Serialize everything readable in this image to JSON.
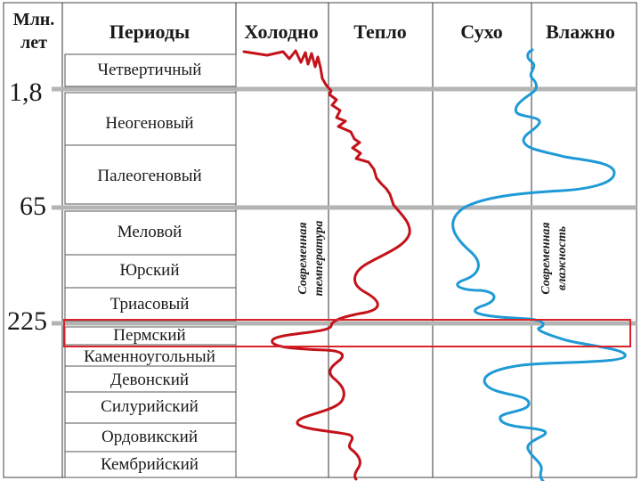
{
  "headers": {
    "age": [
      "Млн.",
      "лет"
    ],
    "periods": "Периоды",
    "cold": "Холодно",
    "warm": "Тепло",
    "dry": "Сухо",
    "wet": "Влажно"
  },
  "age_markers": [
    "1,8",
    "65",
    "225"
  ],
  "periods": [
    "Четвертичный",
    "Неогеновый",
    "Палеогеновый",
    "Меловой",
    "Юрский",
    "Триасовый",
    "Пермский",
    "Каменноугольный",
    "Девонский",
    "Силурийский",
    "Ордовикский",
    "Кембрийский"
  ],
  "annotations": {
    "modern_temperature": [
      "Современная",
      "температура"
    ],
    "modern_humidity": [
      "Современная",
      "влажность"
    ]
  },
  "highlighted_period": "Пермский",
  "colors": {
    "temperature_curve": "#c4121a",
    "humidity_curve": "#1e9ad6",
    "era_line": "#b4b4b4",
    "highlight_box": "#d9232a",
    "grid": "#555555",
    "text": "#1a1a1a"
  }
}
